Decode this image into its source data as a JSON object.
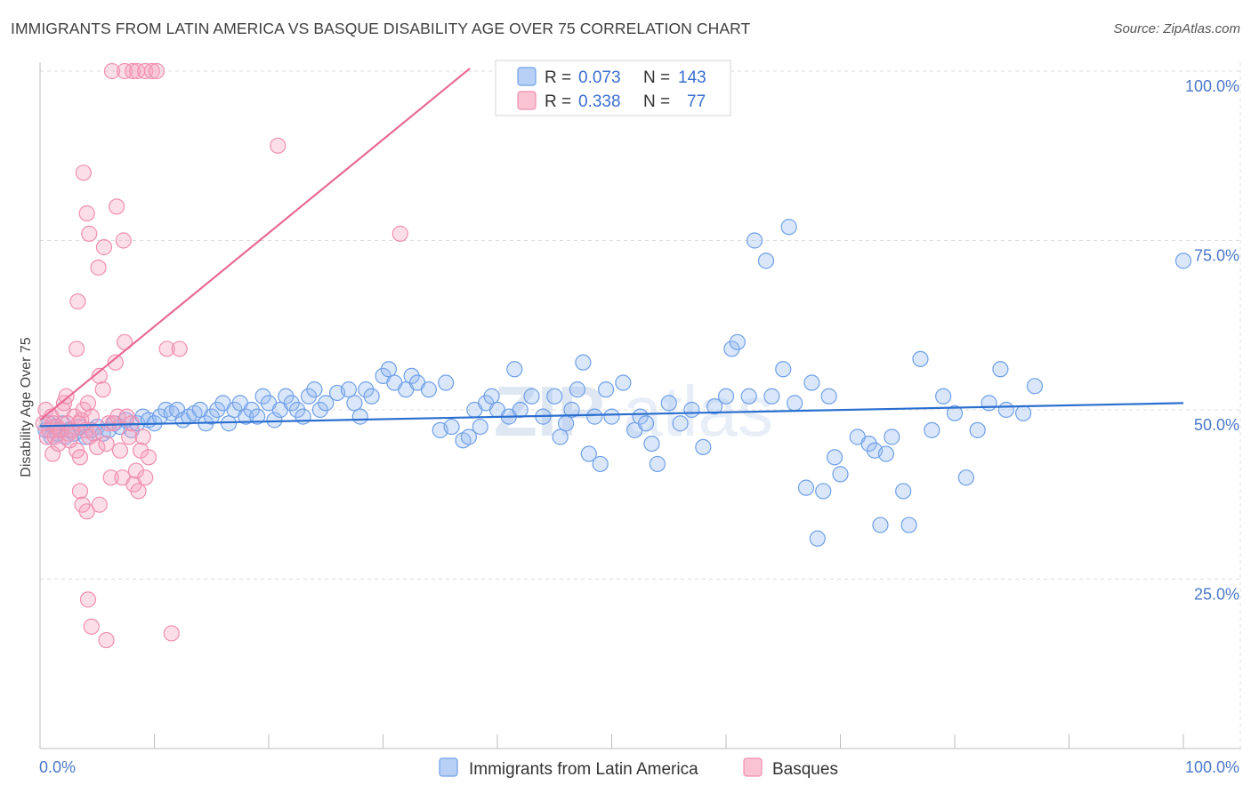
{
  "title": "IMMIGRANTS FROM LATIN AMERICA VS BASQUE DISABILITY AGE OVER 75 CORRELATION CHART",
  "source": "Source: ZipAtlas.com",
  "watermark": {
    "zip": "ZIP",
    "atlas": "atlas"
  },
  "colors": {
    "blue": "#6fa0e8",
    "blue_line": "#2a6fcf",
    "pink": "#f08fb0",
    "pink_line": "#e86a95"
  },
  "chart_data": {
    "type": "scatter",
    "ylabel": "Disability Age Over 75",
    "xlim": [
      0,
      100
    ],
    "ylim": [
      0,
      103
    ],
    "x_ticks": [
      "0.0%",
      "100.0%"
    ],
    "y_ticks": [
      {
        "value": 100,
        "label": "100.0%"
      },
      {
        "value": 75,
        "label": "75.0%"
      },
      {
        "value": 50,
        "label": "50.0%"
      },
      {
        "value": 25,
        "label": "25.0%"
      }
    ],
    "legend": {
      "rows": [
        {
          "r_label": "R =",
          "r": "0.073",
          "n_label": "N =",
          "n": "143"
        },
        {
          "r_label": "R =",
          "r": "0.338",
          "n_label": "N =",
          "n": "77"
        }
      ]
    },
    "series": [
      {
        "name": "Immigrants from Latin America",
        "color": "#6fa0e8",
        "trend": [
          [
            0,
            47.6
          ],
          [
            100,
            51.0
          ]
        ],
        "points": [
          [
            0.5,
            47
          ],
          [
            0.8,
            48
          ],
          [
            1,
            46
          ],
          [
            1.2,
            47.5
          ],
          [
            1.5,
            46.5
          ],
          [
            1.8,
            47
          ],
          [
            2,
            48
          ],
          [
            2.2,
            46
          ],
          [
            2.5,
            47
          ],
          [
            3,
            46.5
          ],
          [
            3.5,
            47.5
          ],
          [
            4,
            46
          ],
          [
            4.5,
            47
          ],
          [
            5,
            47.5
          ],
          [
            5.5,
            46.5
          ],
          [
            6,
            47
          ],
          [
            6.5,
            48
          ],
          [
            7,
            47.5
          ],
          [
            7.5,
            48.5
          ],
          [
            8,
            47
          ],
          [
            8.5,
            48
          ],
          [
            9,
            49
          ],
          [
            9.5,
            48.5
          ],
          [
            10,
            48
          ],
          [
            10.5,
            49
          ],
          [
            11,
            50
          ],
          [
            11.5,
            49.5
          ],
          [
            12,
            50
          ],
          [
            12.5,
            48.5
          ],
          [
            13,
            49
          ],
          [
            13.5,
            49.5
          ],
          [
            14,
            50
          ],
          [
            14.5,
            48
          ],
          [
            15,
            49
          ],
          [
            15.5,
            50
          ],
          [
            16,
            51
          ],
          [
            16.5,
            48
          ],
          [
            17,
            50
          ],
          [
            17.5,
            51
          ],
          [
            18,
            49
          ],
          [
            18.5,
            50
          ],
          [
            19,
            49
          ],
          [
            19.5,
            52
          ],
          [
            20,
            51
          ],
          [
            20.5,
            48.5
          ],
          [
            21,
            50
          ],
          [
            21.5,
            52
          ],
          [
            22,
            51
          ],
          [
            22.5,
            50
          ],
          [
            23,
            49
          ],
          [
            23.5,
            52
          ],
          [
            24,
            53
          ],
          [
            24.5,
            50
          ],
          [
            25,
            51
          ],
          [
            26,
            52.5
          ],
          [
            27,
            53
          ],
          [
            27.5,
            51
          ],
          [
            28,
            49
          ],
          [
            28.5,
            53
          ],
          [
            29,
            52
          ],
          [
            30,
            55
          ],
          [
            30.5,
            56
          ],
          [
            31,
            54
          ],
          [
            32,
            53
          ],
          [
            32.5,
            55
          ],
          [
            33,
            54
          ],
          [
            34,
            53
          ],
          [
            35,
            47
          ],
          [
            35.5,
            54
          ],
          [
            36,
            47.5
          ],
          [
            37,
            45.5
          ],
          [
            37.5,
            46
          ],
          [
            38,
            50
          ],
          [
            38.5,
            47.5
          ],
          [
            39,
            51
          ],
          [
            39.5,
            52
          ],
          [
            40,
            50
          ],
          [
            41,
            49
          ],
          [
            41.5,
            56
          ],
          [
            42,
            50
          ],
          [
            43,
            52
          ],
          [
            44,
            49
          ],
          [
            45,
            52
          ],
          [
            45.5,
            46
          ],
          [
            46,
            48
          ],
          [
            46.5,
            50
          ],
          [
            47,
            53
          ],
          [
            47.5,
            57
          ],
          [
            48,
            43.5
          ],
          [
            48.5,
            49
          ],
          [
            49,
            42
          ],
          [
            49.5,
            53
          ],
          [
            50,
            49
          ],
          [
            51,
            54
          ],
          [
            52,
            47
          ],
          [
            52.5,
            49
          ],
          [
            53,
            48
          ],
          [
            53.5,
            45
          ],
          [
            54,
            42
          ],
          [
            55,
            51
          ],
          [
            56,
            48
          ],
          [
            57,
            50
          ],
          [
            58,
            44.5
          ],
          [
            59,
            50.5
          ],
          [
            60,
            52
          ],
          [
            60.5,
            59
          ],
          [
            61,
            60
          ],
          [
            62,
            52
          ],
          [
            62.5,
            75
          ],
          [
            63.5,
            72
          ],
          [
            64,
            52
          ],
          [
            65,
            56
          ],
          [
            65.5,
            77
          ],
          [
            66,
            51
          ],
          [
            67,
            38.5
          ],
          [
            67.5,
            54
          ],
          [
            68,
            31
          ],
          [
            68.5,
            38
          ],
          [
            69,
            52
          ],
          [
            69.5,
            43
          ],
          [
            70,
            40.5
          ],
          [
            71.5,
            46
          ],
          [
            72.5,
            45
          ],
          [
            73,
            44
          ],
          [
            73.5,
            33
          ],
          [
            74,
            43.5
          ],
          [
            74.5,
            46
          ],
          [
            75.5,
            38
          ],
          [
            76,
            33
          ],
          [
            77,
            57.5
          ],
          [
            78,
            47
          ],
          [
            79,
            52
          ],
          [
            80,
            49.5
          ],
          [
            81,
            40
          ],
          [
            82,
            47
          ],
          [
            83,
            51
          ],
          [
            84,
            56
          ],
          [
            84.5,
            50
          ],
          [
            86,
            49.5
          ],
          [
            87,
            53.5
          ],
          [
            100,
            72
          ]
        ]
      },
      {
        "name": "Basques",
        "color": "#f08fb0",
        "trend": [
          [
            0,
            48.5
          ],
          [
            37.6,
            100.4
          ]
        ],
        "points": [
          [
            0.3,
            48
          ],
          [
            0.5,
            50
          ],
          [
            0.6,
            46
          ],
          [
            0.8,
            47
          ],
          [
            1,
            49
          ],
          [
            1.1,
            43.5
          ],
          [
            1.2,
            48
          ],
          [
            1.3,
            46
          ],
          [
            1.5,
            47.5
          ],
          [
            1.6,
            45
          ],
          [
            1.8,
            47
          ],
          [
            2,
            50
          ],
          [
            2.1,
            51
          ],
          [
            2.3,
            52
          ],
          [
            2.4,
            48
          ],
          [
            2.5,
            46.5
          ],
          [
            2.6,
            45.5
          ],
          [
            2.8,
            47
          ],
          [
            3,
            49
          ],
          [
            3.2,
            44
          ],
          [
            3.4,
            48
          ],
          [
            3.5,
            43
          ],
          [
            3.6,
            48.5
          ],
          [
            3.8,
            50
          ],
          [
            4,
            47
          ],
          [
            4.2,
            51
          ],
          [
            4.3,
            46
          ],
          [
            4.5,
            49
          ],
          [
            4.7,
            46.5
          ],
          [
            5,
            44.5
          ],
          [
            5.2,
            55
          ],
          [
            5.5,
            53
          ],
          [
            5.8,
            45
          ],
          [
            6,
            48
          ],
          [
            6.2,
            40
          ],
          [
            6.4,
            48
          ],
          [
            6.6,
            57
          ],
          [
            6.8,
            49
          ],
          [
            7,
            44
          ],
          [
            7.2,
            40
          ],
          [
            7.4,
            60
          ],
          [
            7.6,
            49
          ],
          [
            7.8,
            46
          ],
          [
            8,
            48
          ],
          [
            8.2,
            39
          ],
          [
            8.4,
            41
          ],
          [
            8.6,
            38
          ],
          [
            8.8,
            44
          ],
          [
            9,
            46
          ],
          [
            9.2,
            40
          ],
          [
            9.5,
            43
          ],
          [
            3.2,
            59
          ],
          [
            3.3,
            66
          ],
          [
            3.5,
            38
          ],
          [
            3.7,
            36
          ],
          [
            4.1,
            35
          ],
          [
            4.2,
            22
          ],
          [
            4.5,
            18
          ],
          [
            5.2,
            36
          ],
          [
            5.8,
            16
          ],
          [
            3.8,
            85
          ],
          [
            4.1,
            79
          ],
          [
            4.3,
            76
          ],
          [
            5.1,
            71
          ],
          [
            5.6,
            74
          ],
          [
            6.7,
            80
          ],
          [
            7.3,
            75
          ],
          [
            6.3,
            100
          ],
          [
            7.4,
            100
          ],
          [
            8.1,
            100
          ],
          [
            8.5,
            100
          ],
          [
            9.2,
            100
          ],
          [
            9.8,
            100
          ],
          [
            10.2,
            100
          ],
          [
            20.8,
            89
          ],
          [
            31.5,
            76
          ],
          [
            11.1,
            59
          ],
          [
            12.2,
            59
          ],
          [
            11.5,
            17
          ]
        ]
      }
    ]
  },
  "bottom_legend": [
    {
      "label": "Immigrants from Latin America"
    },
    {
      "label": "Basques"
    }
  ]
}
